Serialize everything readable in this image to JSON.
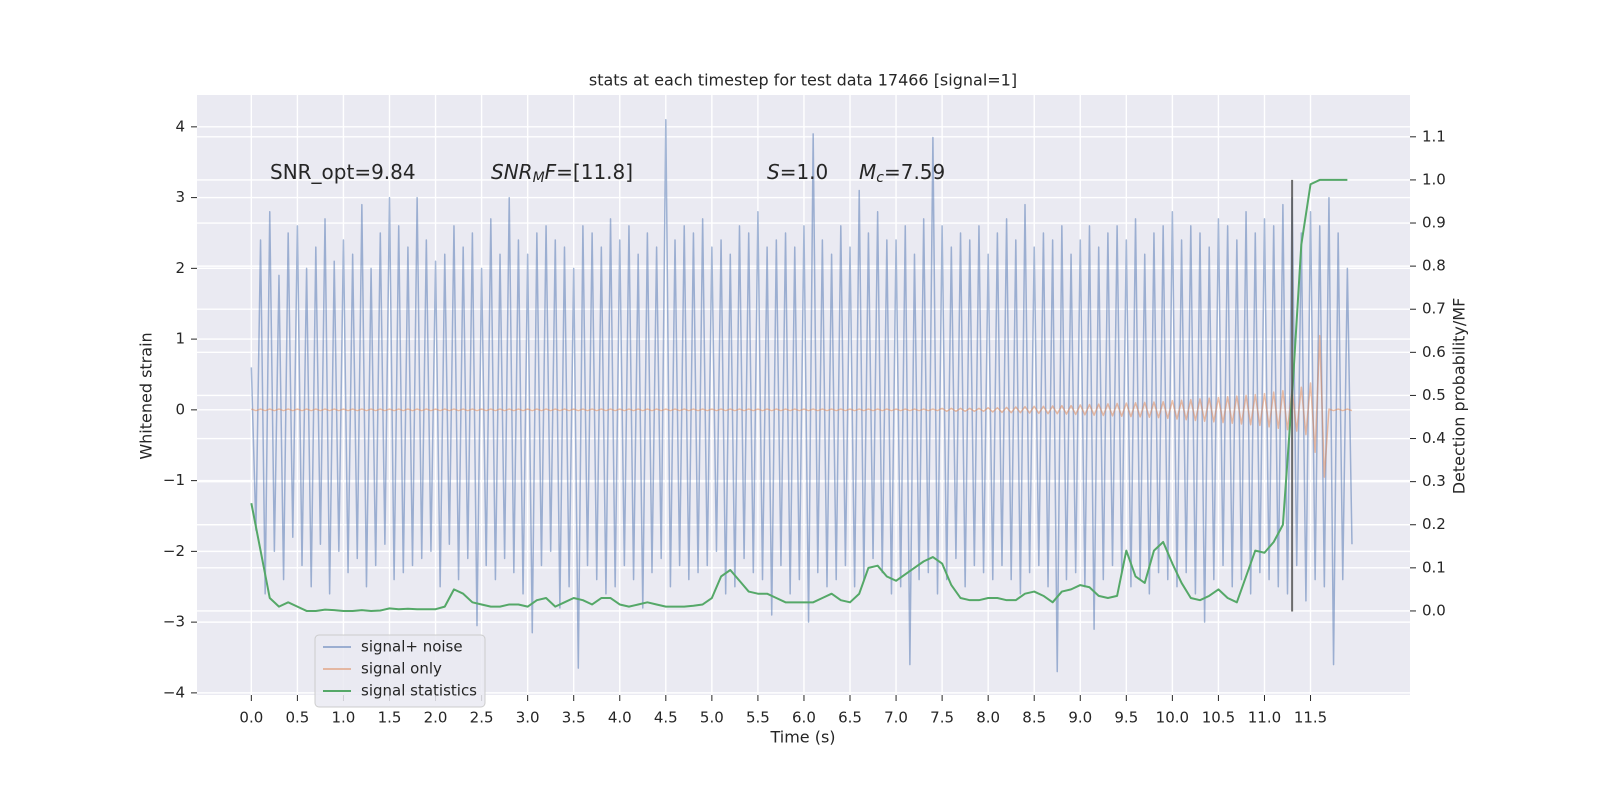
{
  "chart_data": {
    "type": "line",
    "title": "stats at each timestep for test data 17466 [signal=1]",
    "xlabel": "Time (s)",
    "ylabel": "Whitened strain",
    "y2label": "Detection probability/MF",
    "grid": true,
    "legend": "lower left",
    "xlim": [
      -0.59,
      12.58
    ],
    "ylim": [
      -4.03,
      4.45
    ],
    "y2lim": [
      -0.195,
      1.197
    ],
    "xticks": [
      {
        "value": 0,
        "label": "0.0"
      },
      0.5,
      {
        "value": 1,
        "label": "1.0"
      },
      1.5,
      {
        "value": 2,
        "label": "2.0"
      },
      2.5,
      {
        "value": 3,
        "label": "3.0"
      },
      3.5,
      {
        "value": 4,
        "label": "4.0"
      },
      4.5,
      {
        "value": 5,
        "label": "5.0"
      },
      5.5,
      {
        "value": 6,
        "label": "6.0"
      },
      6.5,
      {
        "value": 7,
        "label": "7.0"
      },
      7.5,
      {
        "value": 8,
        "label": "8.0"
      },
      8.5,
      {
        "value": 9,
        "label": "9.0"
      },
      9.5,
      {
        "value": 10,
        "label": "10.0"
      },
      10.5,
      {
        "value": 11,
        "label": "11.0"
      },
      11.5
    ],
    "yticks": [
      {
        "value": -4,
        "label": "−4"
      },
      {
        "value": -3,
        "label": "−3"
      },
      {
        "value": -2,
        "label": "−2"
      },
      {
        "value": -1,
        "label": "−1"
      },
      0,
      1,
      2,
      3,
      4
    ],
    "y2ticks": [
      {
        "value": 0,
        "label": "0.0"
      },
      0.1,
      0.2,
      0.3,
      0.4,
      0.5,
      0.6,
      0.7,
      0.8,
      0.9,
      {
        "value": 1,
        "label": "1.0"
      },
      1.1
    ],
    "annotations": [
      {
        "parts": [
          {
            "text": "SNR_opt=9.84"
          }
        ]
      },
      {
        "parts": [
          {
            "text": "SNR",
            "style": "italic"
          },
          {
            "text": "M",
            "style": "sub"
          },
          {
            "text": "F",
            "style": "italic"
          },
          {
            "text": "=[11.8]"
          }
        ]
      },
      {
        "parts": [
          {
            "text": "S",
            "style": "italic"
          },
          {
            "text": "=1.0"
          }
        ]
      },
      {
        "parts": [
          {
            "text": "M",
            "style": "italic"
          },
          {
            "text": "c",
            "style": "sub"
          },
          {
            "text": "=7.59"
          }
        ]
      }
    ],
    "vline": {
      "x": 11.3,
      "ymin": -2.85,
      "ymax": 3.25,
      "color": "#555555"
    },
    "x": [
      0,
      0.05,
      0.1,
      0.15,
      0.2,
      0.25,
      0.3,
      0.35,
      0.4,
      0.45,
      0.5,
      0.55,
      0.6,
      0.65,
      0.7,
      0.75,
      0.8,
      0.85,
      0.9,
      0.95,
      1,
      1.05,
      1.1,
      1.15,
      1.2,
      1.25,
      1.3,
      1.35,
      1.4,
      1.45,
      1.5,
      1.55,
      1.6,
      1.65,
      1.7,
      1.75,
      1.8,
      1.85,
      1.9,
      1.95,
      2,
      2.05,
      2.1,
      2.15,
      2.2,
      2.25,
      2.3,
      2.35,
      2.4,
      2.45,
      2.5,
      2.55,
      2.6,
      2.65,
      2.7,
      2.75,
      2.8,
      2.85,
      2.9,
      2.95,
      3,
      3.05,
      3.1,
      3.15,
      3.2,
      3.25,
      3.3,
      3.35,
      3.4,
      3.45,
      3.5,
      3.55,
      3.6,
      3.65,
      3.7,
      3.75,
      3.8,
      3.85,
      3.9,
      3.95,
      4,
      4.05,
      4.1,
      4.15,
      4.2,
      4.25,
      4.3,
      4.35,
      4.4,
      4.45,
      4.5,
      4.55,
      4.6,
      4.65,
      4.7,
      4.75,
      4.8,
      4.85,
      4.9,
      4.95,
      5,
      5.05,
      5.1,
      5.15,
      5.2,
      5.25,
      5.3,
      5.35,
      5.4,
      5.45,
      5.5,
      5.55,
      5.6,
      5.65,
      5.7,
      5.75,
      5.8,
      5.85,
      5.9,
      5.95,
      6,
      6.05,
      6.1,
      6.15,
      6.2,
      6.25,
      6.3,
      6.35,
      6.4,
      6.45,
      6.5,
      6.55,
      6.6,
      6.65,
      6.7,
      6.75,
      6.8,
      6.85,
      6.9,
      6.95,
      7,
      7.05,
      7.1,
      7.15,
      7.2,
      7.25,
      7.3,
      7.35,
      7.4,
      7.45,
      7.5,
      7.55,
      7.6,
      7.65,
      7.7,
      7.75,
      7.8,
      7.85,
      7.9,
      7.95,
      8,
      8.05,
      8.1,
      8.15,
      8.2,
      8.25,
      8.3,
      8.35,
      8.4,
      8.45,
      8.5,
      8.55,
      8.6,
      8.65,
      8.7,
      8.75,
      8.8,
      8.85,
      8.9,
      8.95,
      9,
      9.05,
      9.1,
      9.15,
      9.2,
      9.25,
      9.3,
      9.35,
      9.4,
      9.45,
      9.5,
      9.55,
      9.6,
      9.65,
      9.7,
      9.75,
      9.8,
      9.85,
      9.9,
      9.95,
      10,
      10.05,
      10.1,
      10.15,
      10.2,
      10.25,
      10.3,
      10.35,
      10.4,
      10.45,
      10.5,
      10.55,
      10.6,
      10.65,
      10.7,
      10.75,
      10.8,
      10.85,
      10.9,
      10.95,
      11,
      11.05,
      11.1,
      11.15,
      11.2,
      11.25,
      11.3,
      11.35,
      11.4,
      11.45,
      11.5,
      11.55,
      11.6,
      11.65,
      11.7,
      11.75,
      11.8,
      11.85,
      11.9,
      11.95
    ],
    "series": [
      {
        "name": "signal+ noise",
        "color": "#4c72b0",
        "opacity": 0.5,
        "values": [
          0.6,
          -1.7,
          2.4,
          -2.6,
          2.8,
          -2.0,
          1.9,
          -2.4,
          2.5,
          -1.8,
          2.6,
          -2.2,
          2.0,
          -2.5,
          2.3,
          -1.9,
          2.7,
          -2.6,
          2.1,
          -2.0,
          2.4,
          -2.3,
          2.2,
          -2.1,
          2.9,
          -2.5,
          2.0,
          -2.2,
          2.5,
          -1.9,
          3.0,
          -2.4,
          2.6,
          -2.3,
          2.3,
          -2.2,
          3.0,
          -2.1,
          2.4,
          -2.0,
          2.1,
          -2.5,
          2.2,
          -1.9,
          2.6,
          -2.4,
          2.3,
          -2.1,
          2.5,
          -3.05,
          2.0,
          -2.2,
          2.7,
          -2.4,
          2.2,
          -2.1,
          3.0,
          -2.3,
          2.4,
          -2.6,
          2.2,
          -3.15,
          2.5,
          -2.2,
          2.6,
          -2.0,
          2.4,
          -2.8,
          2.3,
          -2.5,
          2.0,
          -3.65,
          2.6,
          -2.2,
          2.5,
          -2.4,
          2.3,
          -2.6,
          2.7,
          -2.5,
          2.4,
          -2.2,
          2.6,
          -2.4,
          2.2,
          -2.8,
          2.5,
          -2.3,
          2.3,
          -2.1,
          4.1,
          -2.5,
          2.4,
          -2.2,
          2.6,
          -2.4,
          2.5,
          -2.3,
          2.7,
          -2.2,
          2.3,
          -2.0,
          2.4,
          -2.6,
          2.2,
          -2.5,
          2.6,
          -2.1,
          2.5,
          -2.3,
          2.8,
          -2.4,
          2.3,
          -2.9,
          2.4,
          -2.2,
          2.5,
          -2.6,
          2.3,
          -2.4,
          2.6,
          -3.0,
          3.9,
          -2.3,
          2.4,
          -2.5,
          2.2,
          -2.4,
          2.6,
          -2.2,
          2.3,
          -2.5,
          3.1,
          -2.4,
          2.5,
          -2.1,
          2.8,
          -2.3,
          2.4,
          -2.6,
          2.4,
          -2.5,
          2.6,
          -3.6,
          2.2,
          -2.4,
          2.7,
          -2.3,
          3.85,
          -2.6,
          2.6,
          -2.4,
          2.3,
          -2.1,
          2.5,
          -2.5,
          2.4,
          -2.2,
          2.6,
          -2.3,
          2.2,
          -2.4,
          2.5,
          -2.2,
          2.7,
          -2.4,
          2.4,
          -2.6,
          2.9,
          -2.3,
          2.3,
          -2.2,
          2.5,
          -2.5,
          2.4,
          -3.7,
          2.6,
          -2.4,
          2.2,
          -2.3,
          2.4,
          -2.5,
          2.6,
          -3.1,
          2.3,
          -2.4,
          2.5,
          -2.2,
          2.6,
          -2.3,
          2.4,
          -2.5,
          2.7,
          -2.4,
          2.2,
          -2.6,
          2.5,
          -2.3,
          2.6,
          -2.4,
          2.8,
          -2.5,
          2.4,
          -2.3,
          2.6,
          -2.6,
          2.5,
          -3.0,
          2.3,
          -2.4,
          2.7,
          -2.2,
          2.6,
          -2.5,
          2.4,
          -2.4,
          2.8,
          -2.6,
          2.5,
          -2.3,
          2.7,
          -2.4,
          2.6,
          -2.5,
          2.9,
          -2.6,
          3.0,
          -2.2,
          2.5,
          -2.7,
          2.8,
          -2.4,
          2.6,
          -2.5,
          3.0,
          -3.6,
          2.5,
          -2.4,
          2.0,
          -1.9
        ]
      },
      {
        "name": "signal only",
        "color": "#dd8452",
        "opacity": 0.5,
        "values": [
          0.01,
          -0.01,
          0.01,
          -0.01,
          0.01,
          -0.01,
          0.01,
          -0.01,
          0.01,
          -0.01,
          0.01,
          -0.01,
          0.01,
          -0.01,
          0.01,
          -0.01,
          0.01,
          -0.01,
          0.01,
          -0.01,
          0.01,
          -0.01,
          0.01,
          -0.01,
          0.01,
          -0.01,
          0.01,
          -0.01,
          0.01,
          -0.01,
          0.01,
          -0.01,
          0.01,
          -0.01,
          0.01,
          -0.01,
          0.01,
          -0.01,
          0.01,
          -0.01,
          0.01,
          -0.01,
          0.01,
          -0.01,
          0.01,
          -0.01,
          0.01,
          -0.01,
          0.01,
          -0.01,
          0.01,
          -0.01,
          0.01,
          -0.01,
          0.01,
          -0.01,
          0.01,
          -0.01,
          0.01,
          -0.01,
          0.01,
          -0.01,
          0.01,
          -0.01,
          0.01,
          -0.01,
          0.01,
          -0.01,
          0.01,
          -0.01,
          0.01,
          -0.01,
          0.01,
          -0.01,
          0.01,
          -0.01,
          0.01,
          -0.01,
          0.01,
          -0.01,
          0.01,
          -0.01,
          0.01,
          -0.01,
          0.01,
          -0.01,
          0.01,
          -0.01,
          0.01,
          -0.01,
          0.01,
          -0.01,
          0.01,
          -0.01,
          0.01,
          -0.01,
          0.01,
          -0.01,
          0.01,
          -0.01,
          0.01,
          -0.01,
          0.01,
          -0.01,
          0.01,
          -0.01,
          0.01,
          -0.01,
          0.01,
          -0.01,
          0.01,
          -0.01,
          0.01,
          -0.01,
          0.01,
          -0.01,
          0.01,
          -0.01,
          0.01,
          -0.01,
          0.01,
          -0.01,
          0.01,
          -0.01,
          0.01,
          -0.01,
          0.01,
          -0.01,
          0.01,
          -0.01,
          0.01,
          -0.01,
          0.01,
          -0.01,
          0.01,
          -0.01,
          0.01,
          -0.01,
          0.01,
          -0.01,
          0.01,
          -0.01,
          0.01,
          -0.01,
          0.01,
          -0.01,
          0.01,
          -0.01,
          0.01,
          -0.01,
          0.02,
          -0.02,
          0.02,
          -0.02,
          0.02,
          -0.02,
          0.02,
          -0.02,
          0.02,
          -0.02,
          0.03,
          -0.03,
          0.03,
          -0.035,
          0.035,
          -0.04,
          0.04,
          -0.04,
          0.045,
          -0.045,
          0.05,
          -0.05,
          0.05,
          -0.055,
          0.055,
          -0.055,
          0.06,
          -0.06,
          0.06,
          -0.065,
          0.07,
          -0.07,
          0.075,
          -0.075,
          0.08,
          -0.08,
          0.085,
          -0.085,
          0.09,
          -0.09,
          0.095,
          -0.095,
          0.1,
          -0.1,
          0.105,
          -0.105,
          0.11,
          -0.11,
          0.115,
          -0.12,
          0.13,
          -0.13,
          0.135,
          -0.14,
          0.145,
          -0.15,
          0.155,
          -0.16,
          0.165,
          -0.17,
          0.175,
          -0.18,
          0.185,
          -0.19,
          0.195,
          -0.2,
          0.205,
          -0.21,
          0.215,
          -0.22,
          0.23,
          -0.24,
          0.25,
          -0.26,
          0.27,
          -0.28,
          0.29,
          -0.3,
          0.32,
          -0.35,
          0.38,
          -0.6,
          1.05,
          -0.95,
          0.01,
          -0.01,
          0.01,
          -0.01,
          0.01,
          -0.01
        ]
      },
      {
        "name": "signal statistics",
        "color": "#55a868",
        "opacity": 1,
        "axis": "y2",
        "x": [
          0,
          0.1,
          0.2,
          0.3,
          0.4,
          0.5,
          0.6,
          0.7,
          0.8,
          0.9,
          1,
          1.1,
          1.2,
          1.3,
          1.4,
          1.5,
          1.6,
          1.7,
          1.8,
          1.9,
          2,
          2.1,
          2.2,
          2.3,
          2.4,
          2.5,
          2.6,
          2.7,
          2.8,
          2.9,
          3,
          3.1,
          3.2,
          3.3,
          3.4,
          3.5,
          3.6,
          3.7,
          3.8,
          3.9,
          4,
          4.1,
          4.2,
          4.3,
          4.4,
          4.5,
          4.6,
          4.7,
          4.8,
          4.9,
          5,
          5.1,
          5.2,
          5.3,
          5.4,
          5.5,
          5.6,
          5.7,
          5.8,
          5.9,
          6,
          6.1,
          6.2,
          6.3,
          6.4,
          6.5,
          6.6,
          6.7,
          6.8,
          6.9,
          7,
          7.1,
          7.2,
          7.3,
          7.4,
          7.5,
          7.6,
          7.7,
          7.8,
          7.9,
          8,
          8.1,
          8.2,
          8.3,
          8.4,
          8.5,
          8.6,
          8.7,
          8.8,
          8.9,
          9,
          9.1,
          9.2,
          9.3,
          9.4,
          9.5,
          9.6,
          9.7,
          9.8,
          9.9,
          10,
          10.1,
          10.2,
          10.3,
          10.4,
          10.5,
          10.6,
          10.7,
          10.8,
          10.9,
          11,
          11.1,
          11.2,
          11.3,
          11.4,
          11.5,
          11.6,
          11.7,
          11.8,
          11.9
        ],
        "values": [
          0.25,
          0.14,
          0.03,
          0.01,
          0.02,
          0.01,
          0.0,
          0.0,
          0.003,
          0.002,
          0.0,
          0.0,
          0.002,
          0.0,
          0.001,
          0.006,
          0.004,
          0.005,
          0.004,
          0.004,
          0.004,
          0.01,
          0.05,
          0.04,
          0.02,
          0.015,
          0.01,
          0.01,
          0.015,
          0.015,
          0.01,
          0.025,
          0.03,
          0.01,
          0.02,
          0.03,
          0.025,
          0.015,
          0.03,
          0.03,
          0.015,
          0.01,
          0.015,
          0.02,
          0.015,
          0.01,
          0.01,
          0.01,
          0.012,
          0.015,
          0.03,
          0.08,
          0.095,
          0.07,
          0.045,
          0.04,
          0.04,
          0.03,
          0.02,
          0.02,
          0.02,
          0.02,
          0.03,
          0.04,
          0.025,
          0.02,
          0.04,
          0.1,
          0.105,
          0.08,
          0.07,
          0.085,
          0.1,
          0.115,
          0.125,
          0.11,
          0.06,
          0.03,
          0.025,
          0.025,
          0.03,
          0.03,
          0.025,
          0.025,
          0.04,
          0.045,
          0.035,
          0.02,
          0.045,
          0.05,
          0.06,
          0.055,
          0.035,
          0.03,
          0.035,
          0.14,
          0.08,
          0.065,
          0.14,
          0.16,
          0.11,
          0.065,
          0.03,
          0.025,
          0.035,
          0.05,
          0.03,
          0.02,
          0.08,
          0.14,
          0.135,
          0.16,
          0.2,
          0.5,
          0.85,
          0.99,
          1.0,
          1.0,
          1.0,
          1.0
        ]
      }
    ]
  }
}
